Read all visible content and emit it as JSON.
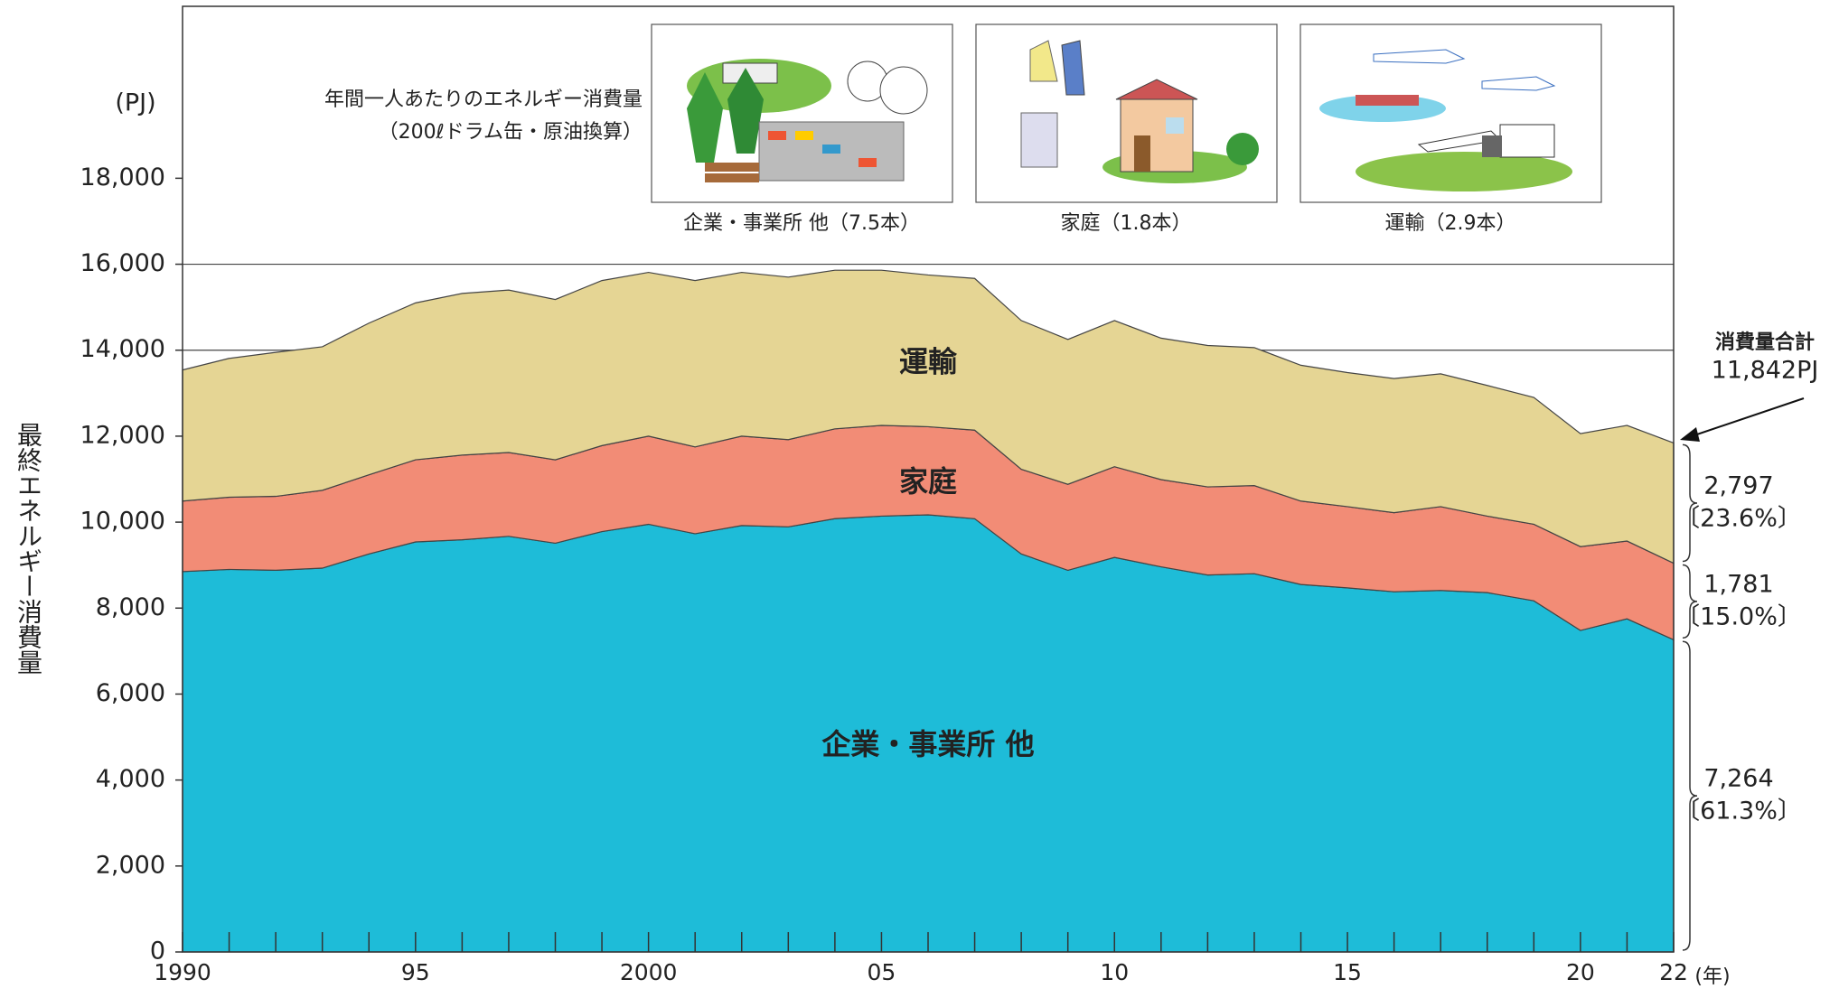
{
  "chart_data": {
    "type": "stacked_area",
    "illustration_title": "年間一人あたりのエネルギー消費量",
    "illustration_subtitle": "（200ℓドラム缶・原油換算）",
    "illustration_captions": [
      "企業・事業所 他（7.5本）",
      "家庭（1.8本）",
      "運輸（2.9本）"
    ],
    "y_unit": "(PJ)",
    "y_label": "最終エネルギー消費量",
    "x_unit": "(年)",
    "x": [
      1990,
      1991,
      1992,
      1993,
      1994,
      1995,
      1996,
      1997,
      1998,
      1999,
      2000,
      2001,
      2002,
      2003,
      2004,
      2005,
      2006,
      2007,
      2008,
      2009,
      2010,
      2011,
      2012,
      2013,
      2014,
      2015,
      2016,
      2017,
      2018,
      2019,
      2020,
      2021,
      2022
    ],
    "series": [
      {
        "name": "企業・事業所 他",
        "color": "#1ebcd8",
        "values": [
          8850,
          8900,
          8880,
          8930,
          9260,
          9540,
          9590,
          9670,
          9510,
          9780,
          9950,
          9730,
          9920,
          9890,
          10080,
          10140,
          10170,
          10080,
          9260,
          8880,
          9180,
          8960,
          8770,
          8800,
          8550,
          8470,
          8380,
          8410,
          8360,
          8170,
          7480,
          7750,
          7264
        ],
        "end_label": "7,264",
        "share_label": "〔61.3%〕"
      },
      {
        "name": "家庭",
        "color": "#f28c76",
        "values": [
          1640,
          1680,
          1720,
          1810,
          1840,
          1910,
          1970,
          1950,
          1940,
          2000,
          2050,
          2020,
          2080,
          2030,
          2090,
          2110,
          2050,
          2060,
          1970,
          2000,
          2110,
          2030,
          2050,
          2050,
          1940,
          1890,
          1840,
          1950,
          1780,
          1780,
          1950,
          1810,
          1781
        ],
        "end_label": "1,781",
        "share_label": "〔15.0%〕"
      },
      {
        "name": "運輸",
        "color": "#e5d594",
        "values": [
          3050,
          3230,
          3350,
          3340,
          3530,
          3650,
          3760,
          3780,
          3730,
          3840,
          3810,
          3870,
          3810,
          3780,
          3690,
          3610,
          3530,
          3530,
          3460,
          3370,
          3400,
          3290,
          3290,
          3210,
          3160,
          3120,
          3120,
          3090,
          3040,
          2950,
          2630,
          2690,
          2797
        ],
        "end_label": "2,797",
        "share_label": "〔23.6%〕"
      }
    ],
    "total_label": "消費量合計",
    "total_value_label": "11,842PJ",
    "xlim": [
      1990,
      2022
    ],
    "xticks": [
      {
        "value": 1990,
        "label": "1990"
      },
      {
        "value": 1995,
        "label": "95"
      },
      {
        "value": 2000,
        "label": "2000"
      },
      {
        "value": 2005,
        "label": "05"
      },
      {
        "value": 2010,
        "label": "10"
      },
      {
        "value": 2015,
        "label": "15"
      },
      {
        "value": 2020,
        "label": "20"
      },
      {
        "value": 2022,
        "label": "22"
      }
    ],
    "ylim": [
      0,
      22000
    ],
    "yticks": [
      0,
      {
        "value": 2000,
        "label": "2,000"
      },
      {
        "value": 4000,
        "label": "4,000"
      },
      {
        "value": 6000,
        "label": "6,000"
      },
      {
        "value": 8000,
        "label": "8,000"
      },
      {
        "value": 10000,
        "label": "10,000"
      },
      {
        "value": 12000,
        "label": "12,000"
      },
      {
        "value": 14000,
        "label": "14,000"
      },
      {
        "value": 16000,
        "label": "16,000"
      },
      {
        "value": 18000,
        "label": "18,000"
      }
    ],
    "grid_lines": [
      14000,
      16000
    ]
  }
}
